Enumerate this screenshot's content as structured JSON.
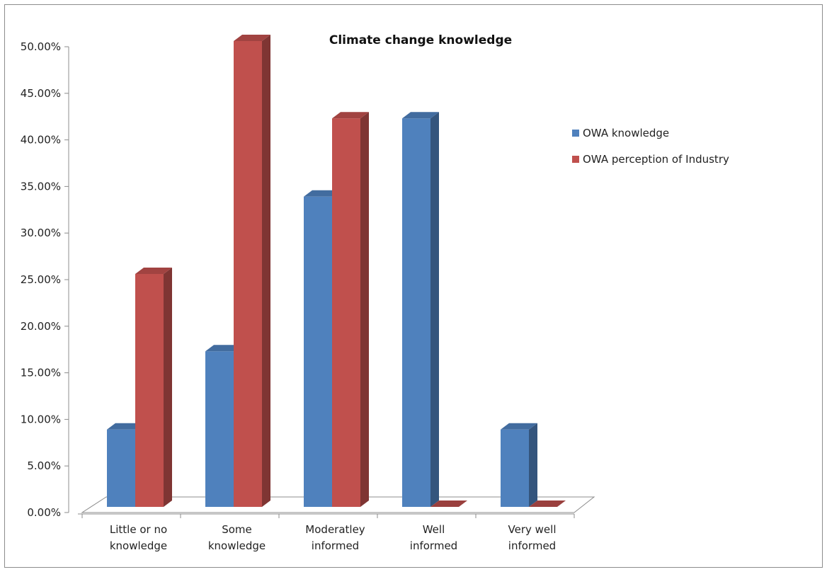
{
  "chart_data": {
    "type": "bar",
    "title": "Climate change knowledge",
    "categories": [
      [
        "Little or no",
        "knowledge"
      ],
      [
        "Some",
        "knowledge"
      ],
      [
        "Moderatley",
        "informed"
      ],
      [
        "Well",
        "informed"
      ],
      [
        "Very well",
        "informed"
      ]
    ],
    "series": [
      {
        "name": "OWA knowledge",
        "color": "#4f81bd",
        "values": [
          0.083,
          0.167,
          0.333,
          0.417,
          0.083
        ]
      },
      {
        "name": "OWA perception of Industry",
        "color": "#c0504d",
        "values": [
          0.25,
          0.5,
          0.417,
          0.0,
          0.0
        ]
      }
    ],
    "ylim": [
      0,
      0.5
    ],
    "yticks": [
      "0.00%",
      "5.00%",
      "10.00%",
      "15.00%",
      "20.00%",
      "25.00%",
      "30.00%",
      "35.00%",
      "40.00%",
      "45.00%",
      "50.00%"
    ],
    "legend_position": "right",
    "grid": false,
    "three_d": true
  }
}
